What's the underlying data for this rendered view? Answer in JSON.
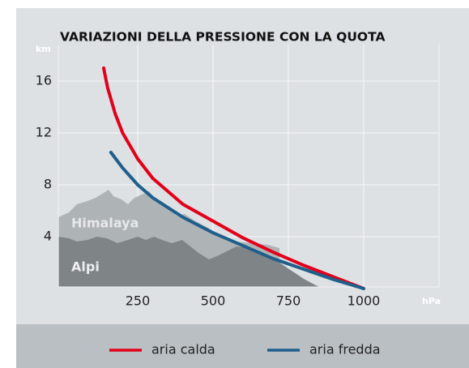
{
  "chart_data": {
    "type": "line",
    "title": "VARIAZIONI DELLA PRESSIONE CON LA QUOTA",
    "x_label": "hPa",
    "y_label": "km",
    "annotations": [
      "Himalaya",
      "Alpi"
    ],
    "xlim": [
      0,
      1250
    ],
    "xticks": [
      250,
      500,
      750,
      1000
    ],
    "ylim": [
      0,
      19
    ],
    "yticks": [
      4,
      8,
      12,
      16
    ],
    "grid": true,
    "series": [
      {
        "name": "aria calda",
        "color": "#e2001a",
        "x": [
          137,
          150,
          175,
          200,
          250,
          300,
          400,
          500,
          600,
          700,
          800,
          900,
          1000
        ],
        "values": [
          17,
          15.5,
          13.5,
          12,
          10,
          8.5,
          6.5,
          5.2,
          3.9,
          2.8,
          1.8,
          0.9,
          0
        ]
      },
      {
        "name": "aria fredda",
        "color": "#1f5f8b",
        "x": [
          161,
          200,
          250,
          300,
          400,
          500,
          600,
          700,
          800,
          900,
          1000
        ],
        "values": [
          10.5,
          9.3,
          8,
          7,
          5.5,
          4.3,
          3.3,
          2.3,
          1.5,
          0.7,
          0
        ]
      }
    ]
  }
}
